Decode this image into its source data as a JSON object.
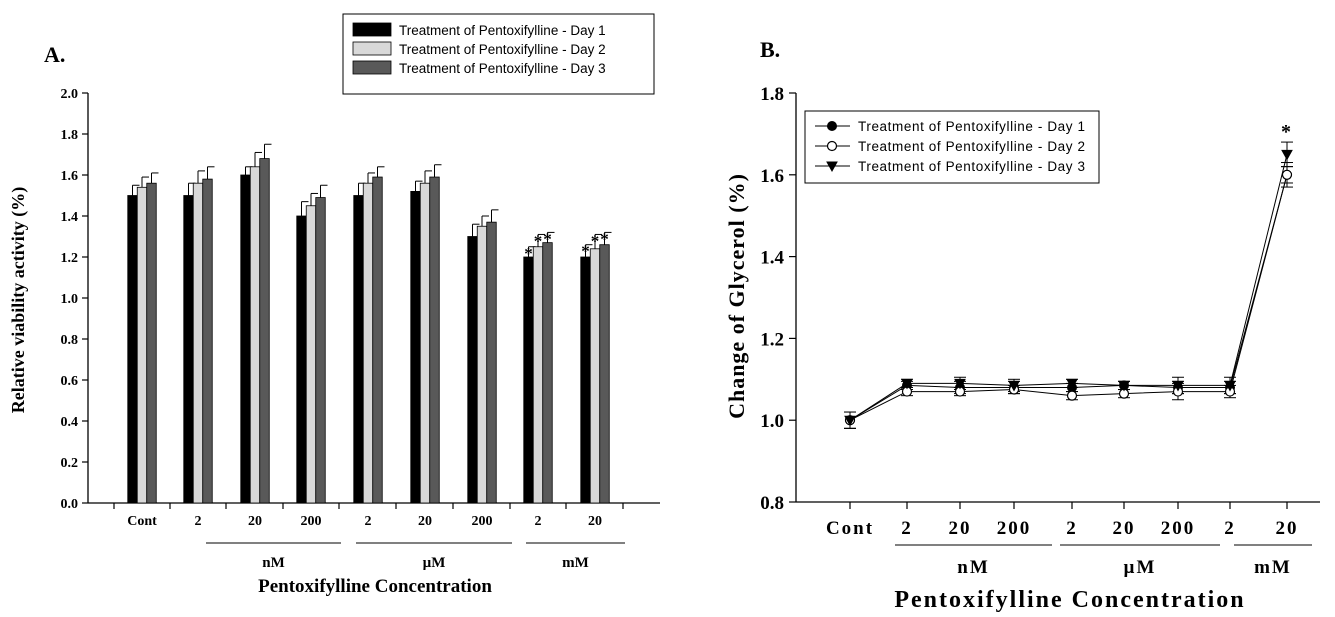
{
  "panels": {
    "a_label": "A.",
    "b_label": "B."
  },
  "chart_data": [
    {
      "type": "bar",
      "categories": [
        "Cont",
        "2",
        "20",
        "200",
        "2",
        "20",
        "200",
        "2",
        "20"
      ],
      "groups": [
        {
          "label": "nM",
          "from": 1,
          "to": 3
        },
        {
          "label": "µM",
          "from": 4,
          "to": 6
        },
        {
          "label": "mM",
          "from": 7,
          "to": 8
        }
      ],
      "series": [
        {
          "name": "Treatment of Pentoxifylline - Day 1",
          "color": "#000000",
          "values": [
            1.5,
            1.5,
            1.6,
            1.4,
            1.5,
            1.52,
            1.3,
            1.2,
            1.2
          ],
          "errors": [
            0.05,
            0.06,
            0.04,
            0.07,
            0.06,
            0.05,
            0.06,
            0.05,
            0.06
          ]
        },
        {
          "name": "Treatment of Pentoxifylline - Day 2",
          "color": "#d9d9d9",
          "values": [
            1.54,
            1.56,
            1.64,
            1.45,
            1.56,
            1.56,
            1.35,
            1.25,
            1.24
          ],
          "errors": [
            0.05,
            0.06,
            0.07,
            0.06,
            0.05,
            0.06,
            0.05,
            0.06,
            0.07
          ]
        },
        {
          "name": "Treatment of Pentoxifylline - Day 3",
          "color": "#595959",
          "values": [
            1.56,
            1.58,
            1.68,
            1.49,
            1.59,
            1.59,
            1.37,
            1.27,
            1.26
          ],
          "errors": [
            0.05,
            0.06,
            0.07,
            0.06,
            0.05,
            0.06,
            0.06,
            0.05,
            0.06
          ]
        }
      ],
      "significant": [
        {
          "category": 7,
          "series": [
            0,
            1,
            2
          ]
        },
        {
          "category": 8,
          "series": [
            0,
            1,
            2
          ]
        }
      ],
      "significance_marker": "*",
      "xlabel": "Pentoxifylline Concentration",
      "ylabel": "Relative viability activity (%)",
      "ylim": [
        0,
        2.0
      ],
      "yticks": [
        "0.0",
        "0.2",
        "0.4",
        "0.6",
        "0.8",
        "1.0",
        "1.2",
        "1.4",
        "1.6",
        "1.8",
        "2.0"
      ],
      "grid": false,
      "legend": "top-right"
    },
    {
      "type": "line",
      "categories": [
        "Cont",
        "2",
        "20",
        "200",
        "2",
        "20",
        "200",
        "2",
        "20"
      ],
      "groups": [
        {
          "label": "nM",
          "from": 1,
          "to": 3
        },
        {
          "label": "µM",
          "from": 4,
          "to": 6
        },
        {
          "label": "mM",
          "from": 7,
          "to": 8
        }
      ],
      "series": [
        {
          "name": "Treatment of Pentoxifylline - Day 1",
          "marker": "filled-circle",
          "values": [
            1.0,
            1.085,
            1.08,
            1.08,
            1.08,
            1.085,
            1.08,
            1.08,
            1.6
          ],
          "errors": [
            0.02,
            0.01,
            0.015,
            0.015,
            0.01,
            0.01,
            0.015,
            0.015,
            0.02
          ]
        },
        {
          "name": "Treatment of Pentoxifylline - Day 2",
          "marker": "open-circle",
          "values": [
            1.0,
            1.07,
            1.07,
            1.075,
            1.06,
            1.065,
            1.07,
            1.07,
            1.6
          ],
          "errors": [
            0.02,
            0.01,
            0.01,
            0.01,
            0.01,
            0.01,
            0.02,
            0.015,
            0.03
          ]
        },
        {
          "name": "Treatment of Pentoxifylline - Day 3",
          "marker": "filled-triangle-down",
          "values": [
            1.0,
            1.09,
            1.09,
            1.085,
            1.09,
            1.085,
            1.085,
            1.085,
            1.65
          ],
          "errors": [
            0.02,
            0.01,
            0.015,
            0.015,
            0.01,
            0.01,
            0.02,
            0.02,
            0.03
          ]
        }
      ],
      "significant": [
        {
          "category": 8
        }
      ],
      "significance_marker": "*",
      "xlabel": "Pentoxifylline Concentration",
      "ylabel": "Change of Glycerol (%)",
      "ylim": [
        0.8,
        1.8
      ],
      "yticks": [
        "0.8",
        "1.0",
        "1.2",
        "1.4",
        "1.6",
        "1.8"
      ],
      "grid": false,
      "legend": "top-left"
    }
  ]
}
